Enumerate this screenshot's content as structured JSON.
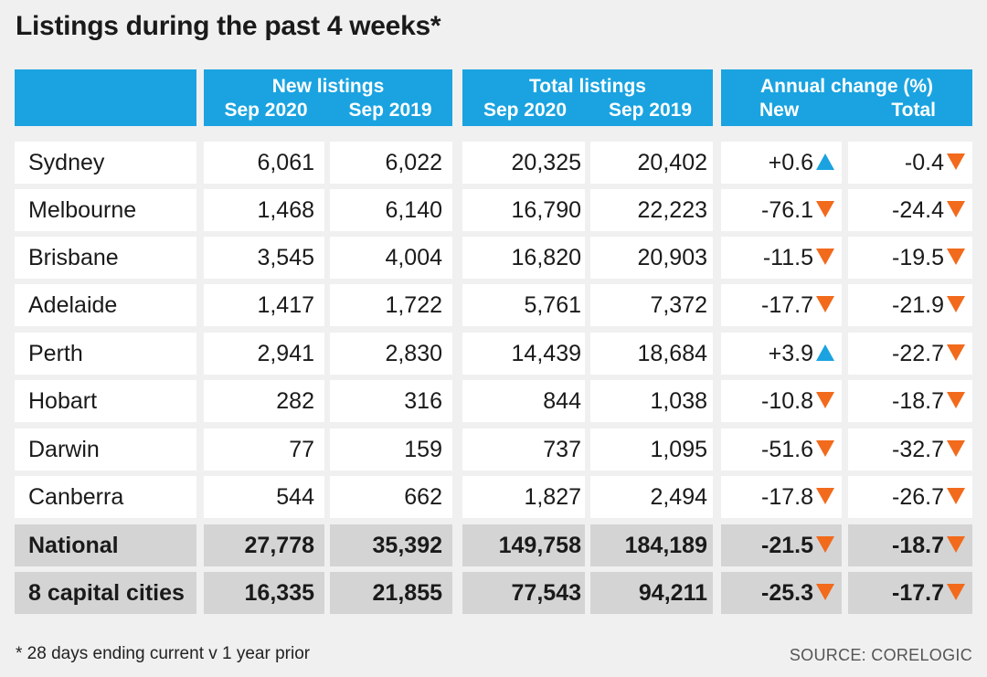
{
  "title": "Listings during the past 4 weeks*",
  "footnote": "* 28 days ending current v 1 year prior",
  "source": "SOURCE: CORELOGIC",
  "colors": {
    "header_bg": "#1aa3e0",
    "up_arrow": "#1aa3e0",
    "down_arrow": "#f26a1b",
    "total_row_bg": "#d4d4d4"
  },
  "chart_data": {
    "type": "table",
    "column_groups": [
      {
        "label": "",
        "subcolumns": [
          ""
        ]
      },
      {
        "label": "New listings",
        "subcolumns": [
          "Sep 2020",
          "Sep 2019"
        ]
      },
      {
        "label": "Total listings",
        "subcolumns": [
          "Sep 2020",
          "Sep 2019"
        ]
      },
      {
        "label": "Annual change (%)",
        "subcolumns": [
          "New",
          "Total"
        ]
      }
    ],
    "rows": [
      {
        "name": "Sydney",
        "values": [
          "6,061",
          "6,022",
          "20,325",
          "20,402",
          "+0.6",
          "-0.4"
        ],
        "directions": [
          "up",
          "down"
        ],
        "total": false
      },
      {
        "name": "Melbourne",
        "values": [
          "1,468",
          "6,140",
          "16,790",
          "22,223",
          "-76.1",
          "-24.4"
        ],
        "directions": [
          "down",
          "down"
        ],
        "total": false
      },
      {
        "name": "Brisbane",
        "values": [
          "3,545",
          "4,004",
          "16,820",
          "20,903",
          "-11.5",
          "-19.5"
        ],
        "directions": [
          "down",
          "down"
        ],
        "total": false
      },
      {
        "name": "Adelaide",
        "values": [
          "1,417",
          "1,722",
          "5,761",
          "7,372",
          "-17.7",
          "-21.9"
        ],
        "directions": [
          "down",
          "down"
        ],
        "total": false
      },
      {
        "name": "Perth",
        "values": [
          "2,941",
          "2,830",
          "14,439",
          "18,684",
          "+3.9",
          "-22.7"
        ],
        "directions": [
          "up",
          "down"
        ],
        "total": false
      },
      {
        "name": "Hobart",
        "values": [
          "282",
          "316",
          "844",
          "1,038",
          "-10.8",
          "-18.7"
        ],
        "directions": [
          "down",
          "down"
        ],
        "total": false
      },
      {
        "name": "Darwin",
        "values": [
          "77",
          "159",
          "737",
          "1,095",
          "-51.6",
          "-32.7"
        ],
        "directions": [
          "down",
          "down"
        ],
        "total": false
      },
      {
        "name": "Canberra",
        "values": [
          "544",
          "662",
          "1,827",
          "2,494",
          "-17.8",
          "-26.7"
        ],
        "directions": [
          "down",
          "down"
        ],
        "total": false
      },
      {
        "name": "National",
        "values": [
          "27,778",
          "35,392",
          "149,758",
          "184,189",
          "-21.5",
          "-18.7"
        ],
        "directions": [
          "down",
          "down"
        ],
        "total": true
      },
      {
        "name": "8 capital cities",
        "values": [
          "16,335",
          "21,855",
          "77,543",
          "94,211",
          "-25.3",
          "-17.7"
        ],
        "directions": [
          "down",
          "down"
        ],
        "total": true
      }
    ]
  }
}
